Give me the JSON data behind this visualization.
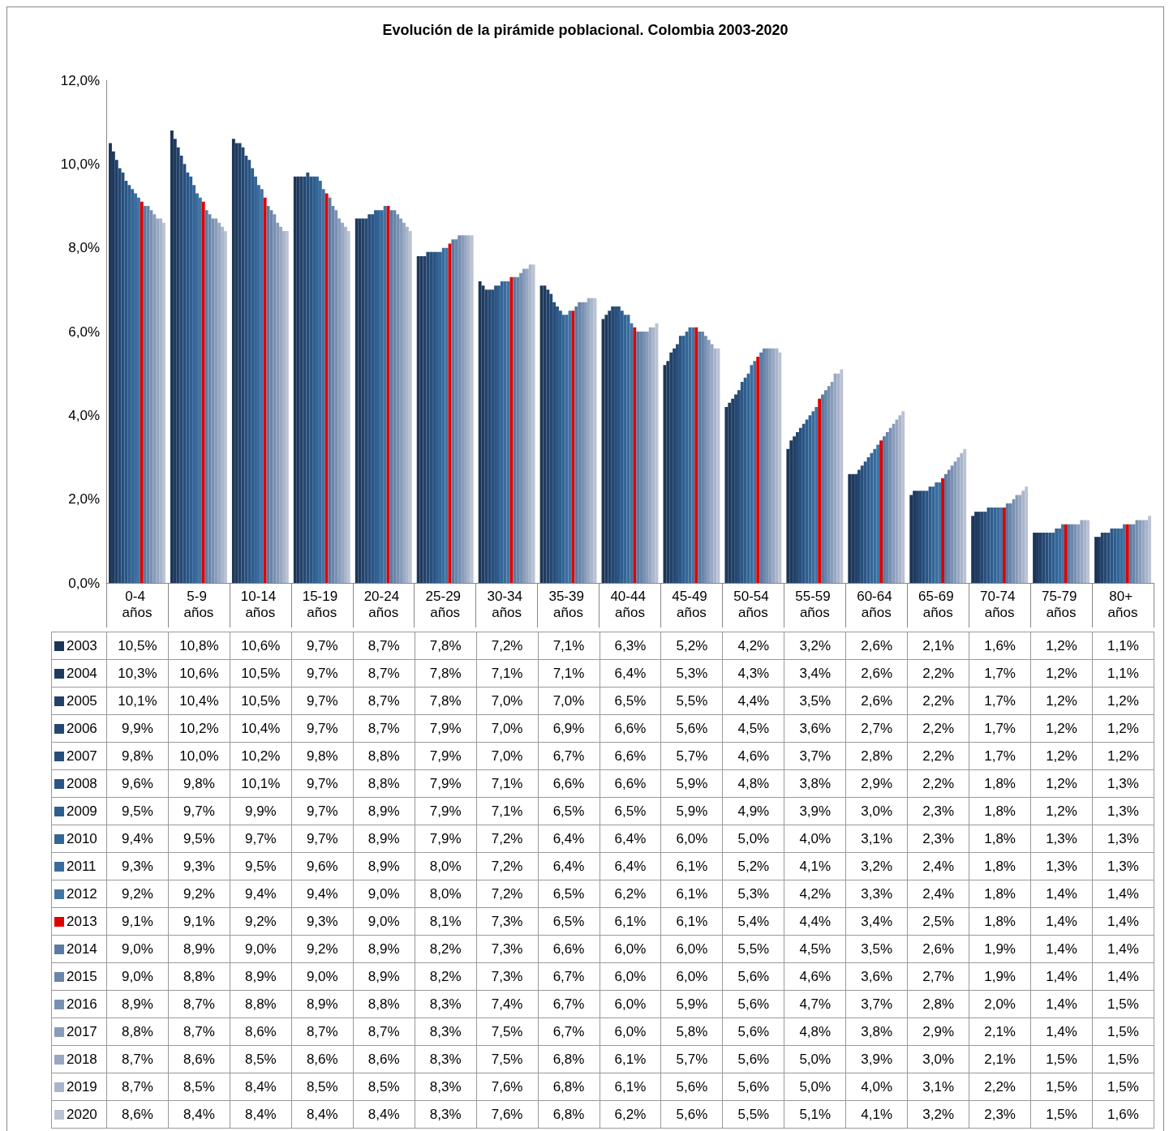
{
  "chart_data": {
    "type": "bar",
    "title": "Evolución de la pirámide poblacional. Colombia 2003-2020",
    "categories": [
      "0-4 años",
      "5-9 años",
      "10-14 años",
      "15-19 años",
      "20-24 años",
      "25-29 años",
      "30-34 años",
      "35-39 años",
      "40-44 años",
      "45-49 años",
      "50-54 años",
      "55-59 años",
      "60-64 años",
      "65-69 años",
      "70-74 años",
      "75-79 años",
      "80+ años"
    ],
    "ylim": [
      0,
      12
    ],
    "yticks": [
      {
        "value": 0,
        "label": "0,0%"
      },
      {
        "value": 2,
        "label": "2,0%"
      },
      {
        "value": 4,
        "label": "4,0%"
      },
      {
        "value": 6,
        "label": "6,0%"
      },
      {
        "value": 8,
        "label": "8,0%"
      },
      {
        "value": 10,
        "label": "10,0%"
      },
      {
        "value": 12,
        "label": "12,0%"
      }
    ],
    "grid": false,
    "legend": "bottom",
    "series": [
      {
        "name": "2003",
        "color": "#1c3556",
        "values": [
          10.5,
          10.8,
          10.6,
          9.7,
          8.7,
          7.8,
          7.2,
          7.1,
          6.3,
          5.2,
          4.2,
          3.2,
          2.6,
          2.1,
          1.6,
          1.2,
          1.1
        ],
        "value_labels": [
          "10,5%",
          "10,8%",
          "10,6%",
          "9,7%",
          "8,7%",
          "7,8%",
          "7,2%",
          "7,1%",
          "6,3%",
          "5,2%",
          "4,2%",
          "3,2%",
          "2,6%",
          "2,1%",
          "1,6%",
          "1,2%",
          "1,1%"
        ]
      },
      {
        "name": "2004",
        "color": "#1f3a5f",
        "values": [
          10.3,
          10.6,
          10.5,
          9.7,
          8.7,
          7.8,
          7.1,
          7.1,
          6.4,
          5.3,
          4.3,
          3.4,
          2.6,
          2.2,
          1.7,
          1.2,
          1.1
        ],
        "value_labels": [
          "10,3%",
          "10,6%",
          "10,5%",
          "9,7%",
          "8,7%",
          "7,8%",
          "7,1%",
          "7,1%",
          "6,4%",
          "5,3%",
          "4,3%",
          "3,4%",
          "2,6%",
          "2,2%",
          "1,7%",
          "1,2%",
          "1,1%"
        ]
      },
      {
        "name": "2005",
        "color": "#224168",
        "values": [
          10.1,
          10.4,
          10.5,
          9.7,
          8.7,
          7.8,
          7.0,
          7.0,
          6.5,
          5.5,
          4.4,
          3.5,
          2.6,
          2.2,
          1.7,
          1.2,
          1.2
        ],
        "value_labels": [
          "10,1%",
          "10,4%",
          "10,5%",
          "9,7%",
          "8,7%",
          "7,8%",
          "7,0%",
          "7,0%",
          "6,5%",
          "5,5%",
          "4,4%",
          "3,5%",
          "2,6%",
          "2,2%",
          "1,7%",
          "1,2%",
          "1,2%"
        ]
      },
      {
        "name": "2006",
        "color": "#254872",
        "values": [
          9.9,
          10.2,
          10.4,
          9.7,
          8.7,
          7.9,
          7.0,
          6.9,
          6.6,
          5.6,
          4.5,
          3.6,
          2.7,
          2.2,
          1.7,
          1.2,
          1.2
        ],
        "value_labels": [
          "9,9%",
          "10,2%",
          "10,4%",
          "9,7%",
          "8,7%",
          "7,9%",
          "7,0%",
          "6,9%",
          "6,6%",
          "5,6%",
          "4,5%",
          "3,6%",
          "2,7%",
          "2,2%",
          "1,7%",
          "1,2%",
          "1,2%"
        ]
      },
      {
        "name": "2007",
        "color": "#284f7c",
        "values": [
          9.8,
          10.0,
          10.2,
          9.8,
          8.8,
          7.9,
          7.0,
          6.7,
          6.6,
          5.7,
          4.6,
          3.7,
          2.8,
          2.2,
          1.7,
          1.2,
          1.2
        ],
        "value_labels": [
          "9,8%",
          "10,0%",
          "10,2%",
          "9,8%",
          "8,8%",
          "7,9%",
          "7,0%",
          "6,7%",
          "6,6%",
          "5,7%",
          "4,6%",
          "3,7%",
          "2,8%",
          "2,2%",
          "1,7%",
          "1,2%",
          "1,2%"
        ]
      },
      {
        "name": "2008",
        "color": "#2b5685",
        "values": [
          9.6,
          9.8,
          10.1,
          9.7,
          8.8,
          7.9,
          7.1,
          6.6,
          6.6,
          5.9,
          4.8,
          3.8,
          2.9,
          2.2,
          1.8,
          1.2,
          1.3
        ],
        "value_labels": [
          "9,6%",
          "9,8%",
          "10,1%",
          "9,7%",
          "8,8%",
          "7,9%",
          "7,1%",
          "6,6%",
          "6,6%",
          "5,9%",
          "4,8%",
          "3,8%",
          "2,9%",
          "2,2%",
          "1,8%",
          "1,2%",
          "1,3%"
        ]
      },
      {
        "name": "2009",
        "color": "#2f5e8f",
        "values": [
          9.5,
          9.7,
          9.9,
          9.7,
          8.9,
          7.9,
          7.1,
          6.5,
          6.5,
          5.9,
          4.9,
          3.9,
          3.0,
          2.3,
          1.8,
          1.2,
          1.3
        ],
        "value_labels": [
          "9,5%",
          "9,7%",
          "9,9%",
          "9,7%",
          "8,9%",
          "7,9%",
          "7,1%",
          "6,5%",
          "6,5%",
          "5,9%",
          "4,9%",
          "3,9%",
          "3,0%",
          "2,3%",
          "1,8%",
          "1,2%",
          "1,3%"
        ]
      },
      {
        "name": "2010",
        "color": "#336697",
        "values": [
          9.4,
          9.5,
          9.7,
          9.7,
          8.9,
          7.9,
          7.2,
          6.4,
          6.4,
          6.0,
          5.0,
          4.0,
          3.1,
          2.3,
          1.8,
          1.3,
          1.3
        ],
        "value_labels": [
          "9,4%",
          "9,5%",
          "9,7%",
          "9,7%",
          "8,9%",
          "7,9%",
          "7,2%",
          "6,4%",
          "6,4%",
          "6,0%",
          "5,0%",
          "4,0%",
          "3,1%",
          "2,3%",
          "1,8%",
          "1,3%",
          "1,3%"
        ]
      },
      {
        "name": "2011",
        "color": "#3a6d9e",
        "values": [
          9.3,
          9.3,
          9.5,
          9.6,
          8.9,
          8.0,
          7.2,
          6.4,
          6.4,
          6.1,
          5.2,
          4.1,
          3.2,
          2.4,
          1.8,
          1.3,
          1.3
        ],
        "value_labels": [
          "9,3%",
          "9,3%",
          "9,5%",
          "9,6%",
          "8,9%",
          "8,0%",
          "7,2%",
          "6,4%",
          "6,4%",
          "6,1%",
          "5,2%",
          "4,1%",
          "3,2%",
          "2,4%",
          "1,8%",
          "1,3%",
          "1,3%"
        ]
      },
      {
        "name": "2012",
        "color": "#4474a3",
        "values": [
          9.2,
          9.2,
          9.4,
          9.4,
          9.0,
          8.0,
          7.2,
          6.5,
          6.2,
          6.1,
          5.3,
          4.2,
          3.3,
          2.4,
          1.8,
          1.4,
          1.4
        ],
        "value_labels": [
          "9,2%",
          "9,2%",
          "9,4%",
          "9,4%",
          "9,0%",
          "8,0%",
          "7,2%",
          "6,5%",
          "6,2%",
          "6,1%",
          "5,3%",
          "4,2%",
          "3,3%",
          "2,4%",
          "1,8%",
          "1,4%",
          "1,4%"
        ]
      },
      {
        "name": "2013",
        "color": "#e00000",
        "values": [
          9.1,
          9.1,
          9.2,
          9.3,
          9.0,
          8.1,
          7.3,
          6.5,
          6.1,
          6.1,
          5.4,
          4.4,
          3.4,
          2.5,
          1.8,
          1.4,
          1.4
        ],
        "value_labels": [
          "9,1%",
          "9,1%",
          "9,2%",
          "9,3%",
          "9,0%",
          "8,1%",
          "7,3%",
          "6,5%",
          "6,1%",
          "6,1%",
          "5,4%",
          "4,4%",
          "3,4%",
          "2,5%",
          "1,8%",
          "1,4%",
          "1,4%"
        ]
      },
      {
        "name": "2014",
        "color": "#5a7ba3",
        "values": [
          9.0,
          8.9,
          9.0,
          9.2,
          8.9,
          8.2,
          7.3,
          6.6,
          6.0,
          6.0,
          5.5,
          4.5,
          3.5,
          2.6,
          1.9,
          1.4,
          1.4
        ],
        "value_labels": [
          "9,0%",
          "8,9%",
          "9,0%",
          "9,2%",
          "8,9%",
          "8,2%",
          "7,3%",
          "6,6%",
          "6,0%",
          "6,0%",
          "5,5%",
          "4,5%",
          "3,5%",
          "2,6%",
          "1,9%",
          "1,4%",
          "1,4%"
        ]
      },
      {
        "name": "2015",
        "color": "#6985aa",
        "values": [
          9.0,
          8.8,
          8.9,
          9.0,
          8.9,
          8.2,
          7.3,
          6.7,
          6.0,
          6.0,
          5.6,
          4.6,
          3.6,
          2.7,
          1.9,
          1.4,
          1.4
        ],
        "value_labels": [
          "9,0%",
          "8,8%",
          "8,9%",
          "9,0%",
          "8,9%",
          "8,2%",
          "7,3%",
          "6,7%",
          "6,0%",
          "6,0%",
          "5,6%",
          "4,6%",
          "3,6%",
          "2,7%",
          "1,9%",
          "1,4%",
          "1,4%"
        ]
      },
      {
        "name": "2016",
        "color": "#7890b1",
        "values": [
          8.9,
          8.7,
          8.8,
          8.9,
          8.8,
          8.3,
          7.4,
          6.7,
          6.0,
          5.9,
          5.6,
          4.7,
          3.7,
          2.8,
          2.0,
          1.4,
          1.5
        ],
        "value_labels": [
          "8,9%",
          "8,7%",
          "8,8%",
          "8,9%",
          "8,8%",
          "8,3%",
          "7,4%",
          "6,7%",
          "6,0%",
          "5,9%",
          "5,6%",
          "4,7%",
          "3,7%",
          "2,8%",
          "2,0%",
          "1,4%",
          "1,5%"
        ]
      },
      {
        "name": "2017",
        "color": "#889cba",
        "values": [
          8.8,
          8.7,
          8.6,
          8.7,
          8.7,
          8.3,
          7.5,
          6.7,
          6.0,
          5.8,
          5.6,
          4.8,
          3.8,
          2.9,
          2.1,
          1.4,
          1.5
        ],
        "value_labels": [
          "8,8%",
          "8,7%",
          "8,6%",
          "8,7%",
          "8,7%",
          "8,3%",
          "7,5%",
          "6,7%",
          "6,0%",
          "5,8%",
          "5,6%",
          "4,8%",
          "3,8%",
          "2,9%",
          "2,1%",
          "1,4%",
          "1,5%"
        ]
      },
      {
        "name": "2018",
        "color": "#98a8c2",
        "values": [
          8.7,
          8.6,
          8.5,
          8.6,
          8.6,
          8.3,
          7.5,
          6.8,
          6.1,
          5.7,
          5.6,
          5.0,
          3.9,
          3.0,
          2.1,
          1.5,
          1.5
        ],
        "value_labels": [
          "8,7%",
          "8,6%",
          "8,5%",
          "8,6%",
          "8,6%",
          "8,3%",
          "7,5%",
          "6,8%",
          "6,1%",
          "5,7%",
          "5,6%",
          "5,0%",
          "3,9%",
          "3,0%",
          "2,1%",
          "1,5%",
          "1,5%"
        ]
      },
      {
        "name": "2019",
        "color": "#a9b5cb",
        "values": [
          8.7,
          8.5,
          8.4,
          8.5,
          8.5,
          8.3,
          7.6,
          6.8,
          6.1,
          5.6,
          5.6,
          5.0,
          4.0,
          3.1,
          2.2,
          1.5,
          1.5
        ],
        "value_labels": [
          "8,7%",
          "8,5%",
          "8,4%",
          "8,5%",
          "8,5%",
          "8,3%",
          "7,6%",
          "6,8%",
          "6,1%",
          "5,6%",
          "5,6%",
          "5,0%",
          "4,0%",
          "3,1%",
          "2,2%",
          "1,5%",
          "1,5%"
        ]
      },
      {
        "name": "2020",
        "color": "#bac3d4",
        "values": [
          8.6,
          8.4,
          8.4,
          8.4,
          8.4,
          8.3,
          7.6,
          6.8,
          6.2,
          5.6,
          5.5,
          5.1,
          4.1,
          3.2,
          2.3,
          1.5,
          1.6
        ],
        "value_labels": [
          "8,6%",
          "8,4%",
          "8,4%",
          "8,4%",
          "8,4%",
          "8,3%",
          "7,6%",
          "6,8%",
          "6,2%",
          "5,6%",
          "5,5%",
          "5,1%",
          "4,1%",
          "3,2%",
          "2,3%",
          "1,5%",
          "1,6%"
        ]
      }
    ]
  }
}
